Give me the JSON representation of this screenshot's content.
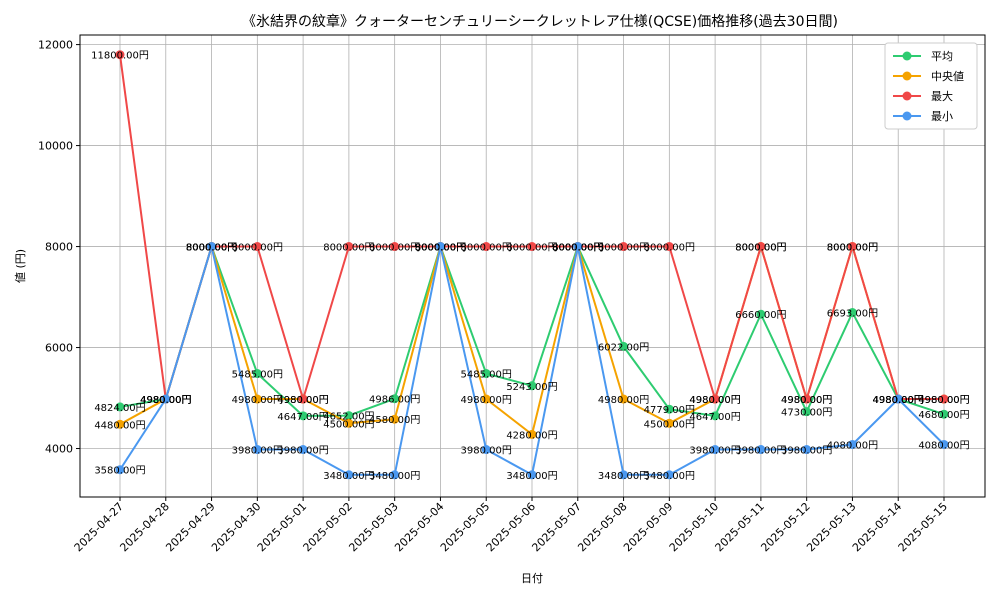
{
  "chart_data": {
    "type": "line",
    "title": "《氷結界の紋章》クォーターセンチュリーシークレットレア仕様(QCSE)価格推移(過去30日間)",
    "xlabel": "日付",
    "ylabel": "値 (円)",
    "ylim": [
      3040,
      12190
    ],
    "yticks": [
      4000,
      6000,
      8000,
      10000,
      12000
    ],
    "grid": true,
    "legend_position": "top-right",
    "value_suffix": "円",
    "categories": [
      "2025-04-27",
      "2025-04-28",
      "2025-04-29",
      "2025-04-30",
      "2025-05-01",
      "2025-05-02",
      "2025-05-03",
      "2025-05-04",
      "2025-05-05",
      "2025-05-06",
      "2025-05-07",
      "2025-05-08",
      "2025-05-09",
      "2025-05-10",
      "2025-05-11",
      "2025-05-12",
      "2025-05-13",
      "2025-05-14",
      "2025-05-15"
    ],
    "series": [
      {
        "name": "平均",
        "color": "#2ecc71",
        "values": [
          4824,
          4980,
          8000,
          5485,
          4647,
          4652,
          4986,
          8000,
          5485,
          5243,
          8000,
          6022,
          4779,
          4647,
          6660,
          4730,
          6693,
          4980,
          4680
        ]
      },
      {
        "name": "中央値",
        "color": "#f5a300",
        "values": [
          4480,
          4980,
          8000,
          4980,
          4980,
          4500,
          4580,
          8000,
          4980,
          4280,
          8000,
          4980,
          4500,
          4980,
          8000,
          4980,
          8000,
          4980,
          4980
        ]
      },
      {
        "name": "最大",
        "color": "#f04848",
        "values": [
          11800,
          4980,
          8000,
          8000,
          4980,
          8000,
          8000,
          8000,
          8000,
          8000,
          8000,
          8000,
          8000,
          4980,
          8000,
          4980,
          8000,
          4980,
          4980
        ]
      },
      {
        "name": "最小",
        "color": "#4a98f0",
        "values": [
          3580,
          4980,
          8000,
          3980,
          3980,
          3480,
          3480,
          8000,
          3980,
          3480,
          8000,
          3480,
          3480,
          3980,
          3980,
          3980,
          4080,
          4980,
          4080
        ]
      }
    ]
  }
}
